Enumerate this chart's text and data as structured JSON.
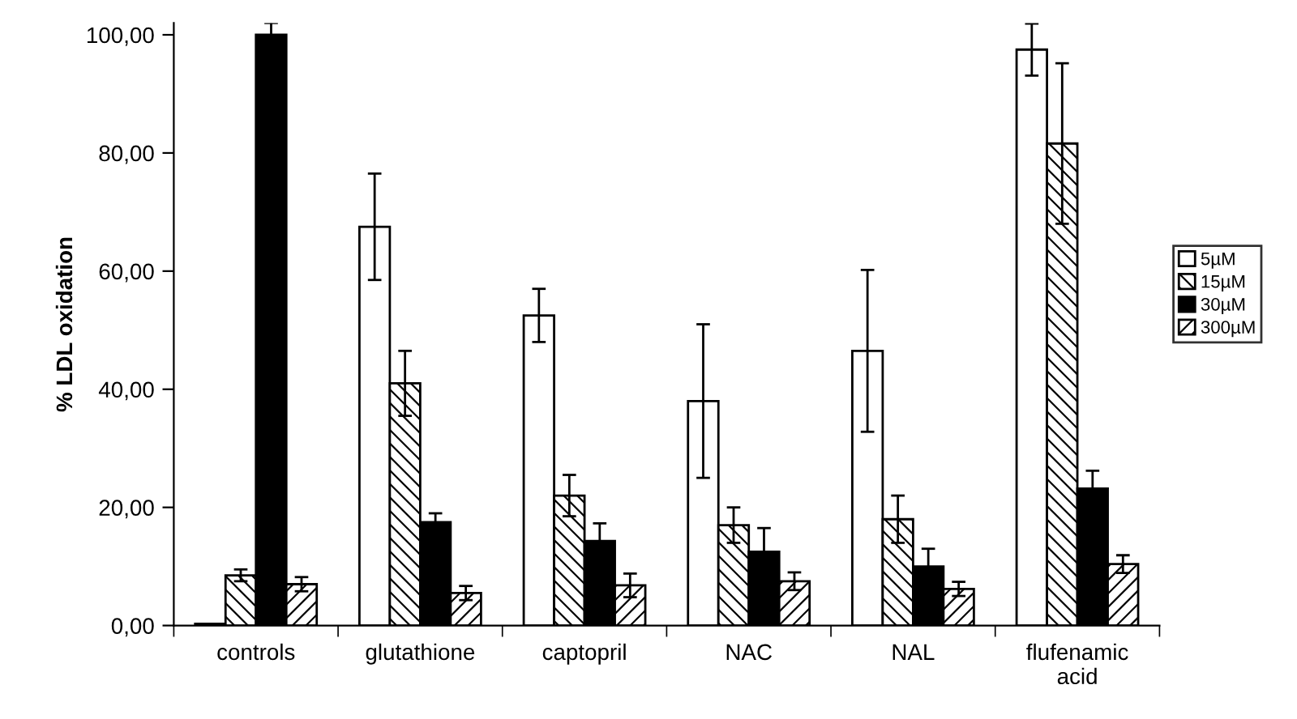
{
  "chart_data": {
    "type": "bar",
    "ylabel": "% LDL oxidation",
    "categories": [
      "controls",
      "glutathione",
      "captopril",
      "NAC",
      "NAL",
      "flufenamic\nacid"
    ],
    "series": [
      {
        "name": "5µM",
        "color": "#ffffff",
        "values": [
          0.3,
          67.5,
          52.5,
          38,
          46.5,
          97.5
        ],
        "errors": [
          null,
          9,
          4.5,
          13,
          13.7,
          4.4
        ]
      },
      {
        "name": "15µM",
        "color": "#000000",
        "values": [
          8.5,
          41,
          22,
          17,
          18,
          81.6
        ],
        "errors": [
          1,
          5.5,
          3.5,
          3,
          4,
          13.6
        ]
      },
      {
        "name": "30µM",
        "color": "#000000",
        "values": [
          100,
          17.5,
          14.3,
          12.5,
          10,
          23.2
        ],
        "errors": [
          2,
          1.5,
          3,
          4,
          3,
          3
        ]
      },
      {
        "name": "300µM",
        "color": "#000000",
        "values": [
          7,
          5.5,
          6.8,
          7.5,
          6.2,
          10.4
        ],
        "errors": [
          1.2,
          1.2,
          2,
          1.5,
          1.2,
          1.5
        ]
      }
    ],
    "ylim": [
      0,
      102
    ],
    "yticks": [
      {
        "value": 0,
        "label": "0,00"
      },
      {
        "value": 20,
        "label": "20,00"
      },
      {
        "value": 40,
        "label": "40,00"
      },
      {
        "value": 60,
        "label": "60,00"
      },
      {
        "value": 80,
        "label": "80,00"
      },
      {
        "value": 100,
        "label": "100,00"
      }
    ],
    "legend": "right",
    "grid": false
  }
}
